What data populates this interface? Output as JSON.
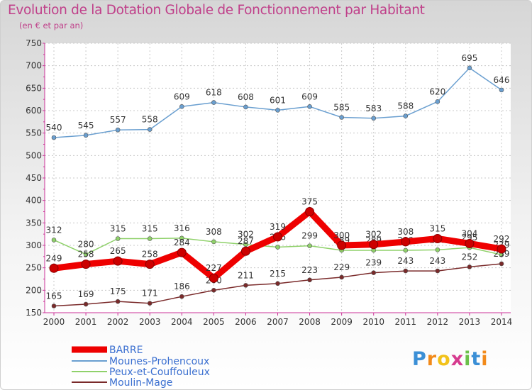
{
  "title": "Evolution de la Dotation Globale de Fonctionnement par Habitant",
  "subtitle": "(en € et par an)",
  "logo": {
    "letters": [
      "P",
      "r",
      "o",
      "x",
      "i",
      "t",
      "i"
    ],
    "colors": [
      "#3b8fd6",
      "#f28a1a",
      "#f2c21a",
      "#d63b8f",
      "#6cc04a",
      "#3b8fd6",
      "#f28a1a"
    ]
  },
  "chart_data": {
    "type": "line",
    "title": "Evolution de la Dotation Globale de Fonctionnement par Habitant",
    "subtitle": "(en € et par an)",
    "x": [
      2000,
      2001,
      2002,
      2003,
      2004,
      2005,
      2006,
      2007,
      2008,
      2009,
      2010,
      2011,
      2012,
      2013,
      2014
    ],
    "ylim": [
      150,
      750
    ],
    "yticks": [
      150,
      200,
      250,
      300,
      350,
      400,
      450,
      500,
      550,
      600,
      650,
      700,
      750
    ],
    "grid": true,
    "legend_position": "bottom-left",
    "series": [
      {
        "name": "BARRE",
        "color": "#ee0000",
        "thick": true,
        "values": [
          249,
          258,
          265,
          258,
          284,
          227,
          287,
          319,
          375,
          300,
          302,
          308,
          315,
          304,
          292
        ]
      },
      {
        "name": "Mounes-Prohencoux",
        "color": "#6a9fd0",
        "thick": false,
        "values": [
          540,
          545,
          557,
          558,
          609,
          618,
          608,
          601,
          609,
          585,
          583,
          588,
          620,
          695,
          646
        ]
      },
      {
        "name": "Peux-et-Couffouleux",
        "color": "#8fd16a",
        "thick": false,
        "values": [
          312,
          280,
          315,
          315,
          316,
          308,
          302,
          296,
          299,
          289,
          289,
          289,
          290,
          295,
          279
        ]
      },
      {
        "name": "Moulin-Mage",
        "color": "#7a2a2a",
        "thick": false,
        "values": [
          165,
          169,
          175,
          171,
          186,
          200,
          211,
          215,
          223,
          229,
          239,
          243,
          243,
          252,
          259
        ]
      }
    ]
  }
}
